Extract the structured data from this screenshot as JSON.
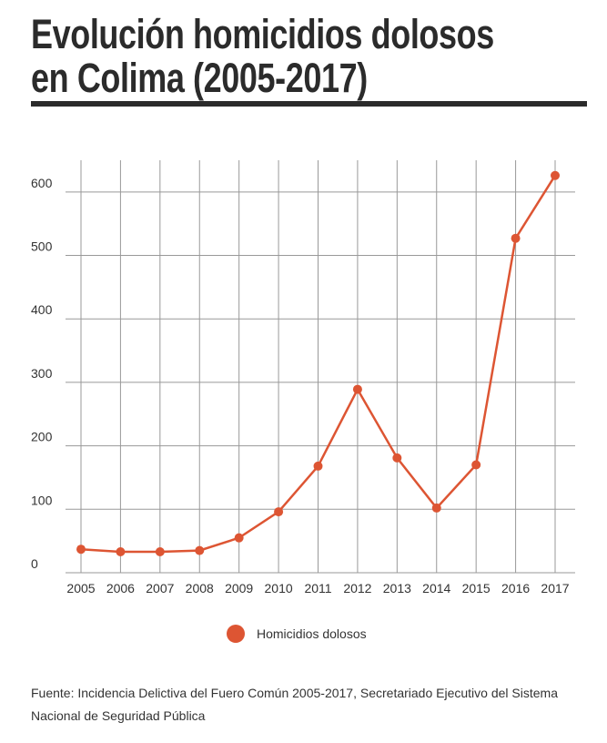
{
  "chart_data": {
    "type": "line",
    "title": "Evolución homicidios dolosos en Colima (2005-2017)",
    "categories": [
      "2005",
      "2006",
      "2007",
      "2008",
      "2009",
      "2010",
      "2011",
      "2012",
      "2013",
      "2014",
      "2015",
      "2016",
      "2017"
    ],
    "series": [
      {
        "name": "Homicidios dolosos",
        "color": "#dd5533",
        "values": [
          37,
          33,
          33,
          35,
          55,
          96,
          168,
          289,
          181,
          102,
          170,
          527,
          626
        ]
      }
    ],
    "ylim": [
      0,
      650
    ],
    "yticks": [
      0,
      100,
      200,
      300,
      400,
      500,
      600
    ],
    "grid": true,
    "source": "Fuente:  Incidencia Delictiva del Fuero Común 2005-2017, Secretariado Ejecutivo del Sistema Nacional de Seguridad Pública"
  }
}
